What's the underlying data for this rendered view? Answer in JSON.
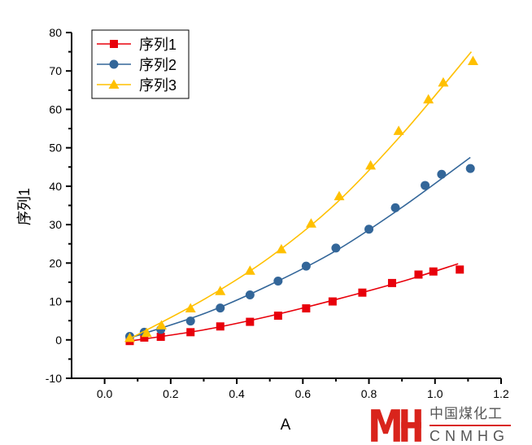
{
  "chart_data": {
    "type": "scatter",
    "title": "",
    "xlabel": "A",
    "ylabel": "序列1",
    "xlim": [
      -0.1,
      1.2
    ],
    "ylim": [
      -10,
      80
    ],
    "xticks": [
      "0.0",
      "0.2",
      "0.4",
      "0.6",
      "0.8",
      "1.0",
      "1.2"
    ],
    "xtick_values": [
      0,
      0.2,
      0.4,
      0.6,
      0.8,
      1.0,
      1.2
    ],
    "yticks": [
      "-10",
      "0",
      "10",
      "20",
      "30",
      "40",
      "50",
      "60",
      "70",
      "80"
    ],
    "ytick_values": [
      -10,
      0,
      10,
      20,
      30,
      40,
      50,
      60,
      70,
      80
    ],
    "grid": false,
    "legend_placement": "top-left",
    "series": [
      {
        "name": "序列1",
        "color": "#e8000b",
        "marker": "square",
        "x": [
          0.076,
          0.12,
          0.17,
          0.26,
          0.35,
          0.44,
          0.525,
          0.61,
          0.69,
          0.78,
          0.87,
          0.95,
          0.995,
          1.075
        ],
        "y": [
          -0.3,
          0.6,
          0.8,
          2.0,
          3.5,
          4.7,
          6.3,
          8.2,
          10.0,
          12.3,
          14.8,
          17.0,
          17.8,
          18.3
        ],
        "fit": [
          [
            0.076,
            -0.3
          ],
          [
            0.3,
            2.6
          ],
          [
            0.5,
            6.2
          ],
          [
            0.7,
            10.5
          ],
          [
            0.9,
            15.2
          ],
          [
            1.07,
            19.8
          ]
        ]
      },
      {
        "name": "序列2",
        "color": "#336699",
        "marker": "circle",
        "x": [
          0.076,
          0.12,
          0.17,
          0.26,
          0.35,
          0.44,
          0.525,
          0.61,
          0.7,
          0.8,
          0.88,
          0.97,
          1.02,
          1.107
        ],
        "y": [
          0.9,
          2.0,
          2.7,
          4.9,
          8.3,
          11.7,
          15.3,
          19.2,
          23.9,
          28.8,
          34.4,
          40.2,
          43.1,
          44.6
        ],
        "fit": [
          [
            0.076,
            0.5
          ],
          [
            0.3,
            6.8
          ],
          [
            0.5,
            14.3
          ],
          [
            0.7,
            23.2
          ],
          [
            0.9,
            34.5
          ],
          [
            1.107,
            47.5
          ]
        ]
      },
      {
        "name": "序列3",
        "color": "#ffc000",
        "marker": "triangle",
        "x": [
          0.076,
          0.127,
          0.172,
          0.26,
          0.35,
          0.44,
          0.535,
          0.625,
          0.71,
          0.805,
          0.89,
          0.98,
          1.025,
          1.115
        ],
        "y": [
          0.5,
          1.8,
          3.8,
          8.2,
          12.7,
          18.0,
          23.6,
          30.3,
          37.4,
          45.4,
          54.4,
          62.6,
          67.0,
          72.6
        ],
        "fit": [
          [
            0.076,
            0.3
          ],
          [
            0.3,
            10.5
          ],
          [
            0.5,
            21.5
          ],
          [
            0.7,
            35.5
          ],
          [
            0.9,
            53.5
          ],
          [
            1.11,
            75.0
          ]
        ]
      }
    ]
  },
  "watermark": {
    "cn": "中国煤化工",
    "en": "CNMHG",
    "logo": "MH"
  }
}
